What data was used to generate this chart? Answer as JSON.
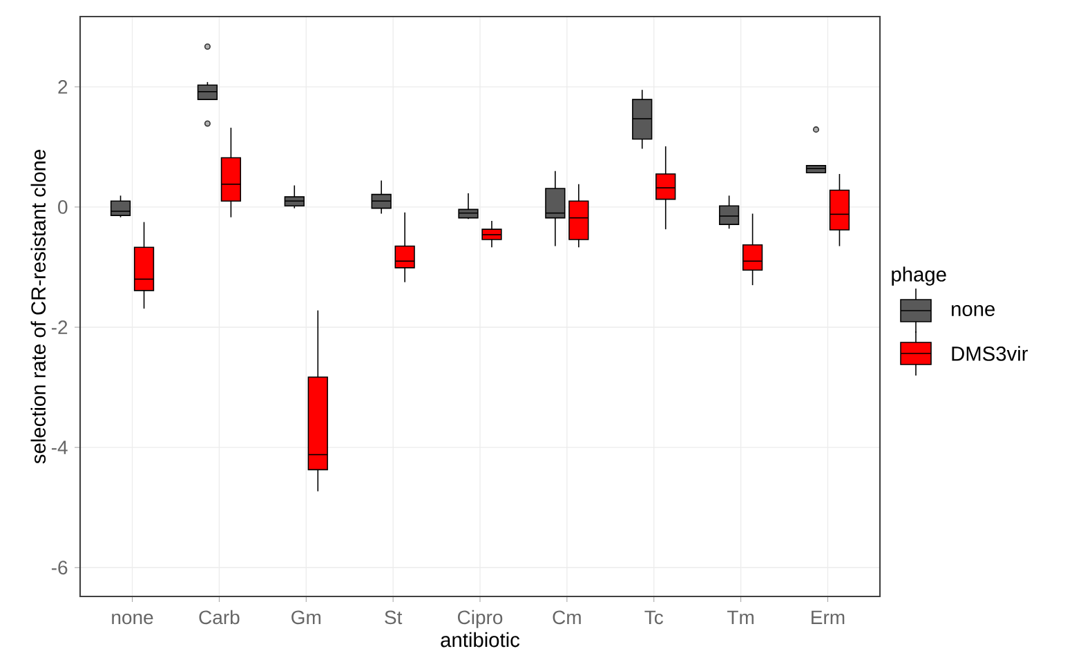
{
  "chart_data": {
    "type": "box",
    "xlabel": "antibiotic",
    "ylabel": "selection rate of CR-resistant clone",
    "legend_title": "phage",
    "legend": "right",
    "grid": true,
    "categories": [
      "none",
      "Carb",
      "Gm",
      "St",
      "Cipro",
      "Cm",
      "Tc",
      "Tm",
      "Erm"
    ],
    "ylim": [
      -6.48,
      3.17
    ],
    "yticks": [
      -6,
      -4,
      -2,
      0,
      2
    ],
    "series": [
      {
        "name": "none",
        "color": "#595959",
        "boxes": [
          {
            "low": -0.17,
            "q1": -0.14,
            "median": -0.07,
            "q3": 0.1,
            "high": 0.19
          },
          {
            "low": 1.78,
            "q1": 1.79,
            "median": 1.92,
            "q3": 2.03,
            "high": 2.08,
            "outliers": [
              2.67,
              1.39
            ]
          },
          {
            "low": -0.02,
            "q1": 0.02,
            "median": 0.1,
            "q3": 0.17,
            "high": 0.36
          },
          {
            "low": -0.11,
            "q1": -0.02,
            "median": 0.1,
            "q3": 0.21,
            "high": 0.44
          },
          {
            "low": -0.2,
            "q1": -0.18,
            "median": -0.1,
            "q3": -0.04,
            "high": 0.23
          },
          {
            "low": -0.65,
            "q1": -0.18,
            "median": -0.1,
            "q3": 0.31,
            "high": 0.6
          },
          {
            "low": 0.97,
            "q1": 1.13,
            "median": 1.47,
            "q3": 1.79,
            "high": 1.95
          },
          {
            "low": -0.36,
            "q1": -0.29,
            "median": -0.15,
            "q3": 0.02,
            "high": 0.19
          },
          {
            "low": 0.57,
            "q1": 0.57,
            "median": 0.64,
            "q3": 0.69,
            "high": 0.69,
            "outliers": [
              1.29
            ]
          }
        ]
      },
      {
        "name": "DMS3vir",
        "color": "#ff0000",
        "boxes": [
          {
            "low": -1.69,
            "q1": -1.39,
            "median": -1.2,
            "q3": -0.67,
            "high": -0.25
          },
          {
            "low": -0.17,
            "q1": 0.1,
            "median": 0.38,
            "q3": 0.82,
            "high": 1.32
          },
          {
            "low": -4.73,
            "q1": -4.37,
            "median": -4.12,
            "q3": -2.83,
            "high": -1.72
          },
          {
            "low": -1.25,
            "q1": -1.01,
            "median": -0.9,
            "q3": -0.65,
            "high": -0.09
          },
          {
            "low": -0.67,
            "q1": -0.54,
            "median": -0.46,
            "q3": -0.37,
            "high": -0.23
          },
          {
            "low": -0.67,
            "q1": -0.54,
            "median": -0.18,
            "q3": 0.1,
            "high": 0.38
          },
          {
            "low": -0.37,
            "q1": 0.13,
            "median": 0.32,
            "q3": 0.55,
            "high": 1.01
          },
          {
            "low": -1.3,
            "q1": -1.05,
            "median": -0.9,
            "q3": -0.63,
            "high": -0.11
          },
          {
            "low": -0.65,
            "q1": -0.38,
            "median": -0.12,
            "q3": 0.28,
            "high": 0.55
          }
        ]
      }
    ]
  }
}
